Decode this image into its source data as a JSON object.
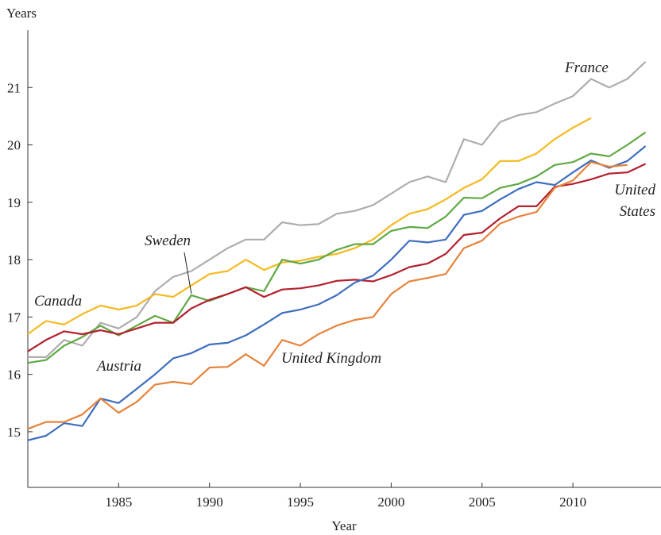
{
  "chart_data": {
    "type": "line",
    "y_label": "Years",
    "x_label": "Year",
    "x": [
      1980,
      1981,
      1982,
      1983,
      1984,
      1985,
      1986,
      1987,
      1988,
      1989,
      1990,
      1991,
      1992,
      1993,
      1994,
      1995,
      1996,
      1997,
      1998,
      1999,
      2000,
      2001,
      2002,
      2003,
      2004,
      2005,
      2006,
      2007,
      2008,
      2009,
      2010,
      2011,
      2012,
      2013,
      2014
    ],
    "xlim": [
      1980,
      2014.85
    ],
    "xticks": [
      1985,
      1990,
      1995,
      2000,
      2005,
      2010
    ],
    "ylim": [
      14.03,
      22.0
    ],
    "yticks": [
      15,
      16,
      17,
      18,
      19,
      20,
      21
    ],
    "series": [
      {
        "name": "France",
        "color": "#adadad",
        "values": [
          16.3,
          16.3,
          16.6,
          16.5,
          16.9,
          16.8,
          17.0,
          17.45,
          17.7,
          17.8,
          18.0,
          18.2,
          18.35,
          18.35,
          18.65,
          18.6,
          18.62,
          18.8,
          18.85,
          18.95,
          19.15,
          19.35,
          19.45,
          19.35,
          20.1,
          20.0,
          20.4,
          20.52,
          20.57,
          20.72,
          20.85,
          21.15,
          21.0,
          21.15,
          21.45
        ]
      },
      {
        "name": "Canada",
        "color": "#f5b921",
        "values": [
          16.7,
          16.93,
          16.87,
          17.05,
          17.2,
          17.13,
          17.2,
          17.4,
          17.35,
          17.55,
          17.75,
          17.8,
          18.0,
          17.82,
          17.95,
          17.98,
          18.05,
          18.1,
          18.2,
          18.35,
          18.6,
          18.8,
          18.88,
          19.05,
          19.25,
          19.4,
          19.72,
          19.72,
          19.85,
          20.1,
          20.3,
          20.47,
          null,
          null,
          null
        ]
      },
      {
        "name": "Sweden",
        "color": "#5fa843",
        "values": [
          16.2,
          16.25,
          16.5,
          16.65,
          16.85,
          16.68,
          16.85,
          17.02,
          16.9,
          17.38,
          17.28,
          17.4,
          17.52,
          17.45,
          18.0,
          17.93,
          18.0,
          18.17,
          18.27,
          18.27,
          18.5,
          18.57,
          18.55,
          18.75,
          19.08,
          19.07,
          19.25,
          19.32,
          19.45,
          19.65,
          19.7,
          19.85,
          19.8,
          20.0,
          20.22
        ]
      },
      {
        "name": "United States",
        "color": "#b3202e",
        "values": [
          16.4,
          16.6,
          16.75,
          16.7,
          16.77,
          16.7,
          16.8,
          16.9,
          16.9,
          17.15,
          17.3,
          17.4,
          17.52,
          17.35,
          17.48,
          17.5,
          17.55,
          17.63,
          17.65,
          17.62,
          17.73,
          17.87,
          17.93,
          18.1,
          18.43,
          18.47,
          18.72,
          18.93,
          18.93,
          19.27,
          19.32,
          19.4,
          19.5,
          19.52,
          19.67
        ]
      },
      {
        "name": "Austria",
        "color": "#3d6ebf",
        "values": [
          14.85,
          14.93,
          15.15,
          15.1,
          15.58,
          15.5,
          15.75,
          16.0,
          16.28,
          16.37,
          16.52,
          16.55,
          16.68,
          16.87,
          17.07,
          17.13,
          17.22,
          17.38,
          17.6,
          17.72,
          18.0,
          18.33,
          18.3,
          18.35,
          18.78,
          18.85,
          19.05,
          19.23,
          19.35,
          19.3,
          19.52,
          19.73,
          19.6,
          19.72,
          19.98
        ]
      },
      {
        "name": "United Kingdom",
        "color": "#e8823a",
        "values": [
          15.05,
          15.17,
          15.17,
          15.3,
          15.58,
          15.33,
          15.52,
          15.82,
          15.87,
          15.83,
          16.12,
          16.13,
          16.35,
          16.15,
          16.6,
          16.5,
          16.7,
          16.85,
          16.95,
          17.0,
          17.4,
          17.62,
          17.68,
          17.75,
          18.2,
          18.33,
          18.63,
          18.75,
          18.83,
          19.25,
          19.38,
          19.7,
          19.62,
          19.65,
          null
        ]
      }
    ]
  }
}
